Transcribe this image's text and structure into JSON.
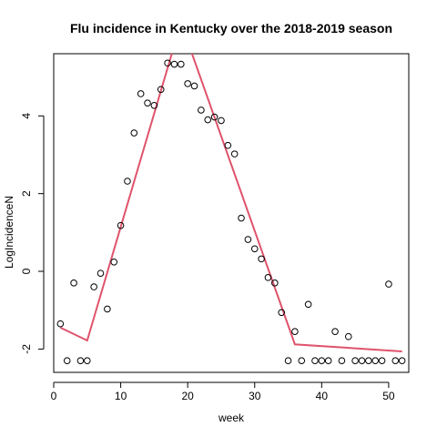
{
  "chart_data": {
    "type": "scatter",
    "title": "Flu incidence in Kentucky over the 2018-2019 season",
    "xlabel": "week",
    "ylabel": "LogIncidenceN",
    "xlim": [
      0,
      53
    ],
    "ylim": [
      -2.6,
      5.6
    ],
    "x_ticks": [
      0,
      10,
      20,
      30,
      40,
      50
    ],
    "y_ticks": [
      -2,
      0,
      2,
      4
    ],
    "box": true,
    "grid": false,
    "legend": "none",
    "point_color": "#000000",
    "line_color": "#DF536B",
    "points": {
      "x": [
        1,
        2,
        3,
        4,
        5,
        6,
        7,
        8,
        9,
        10,
        11,
        12,
        13,
        14,
        15,
        16,
        17,
        18,
        19,
        20,
        21,
        22,
        23,
        24,
        25,
        26,
        27,
        28,
        29,
        30,
        31,
        32,
        33,
        34,
        35,
        36,
        37,
        38,
        39,
        40,
        41,
        42,
        43,
        44,
        45,
        46,
        47,
        48,
        49,
        50,
        51,
        52
      ],
      "y": [
        -1.35,
        -2.3,
        -0.3,
        -2.3,
        -2.3,
        -0.4,
        -0.05,
        -0.97,
        0.24,
        1.18,
        2.32,
        3.56,
        4.57,
        4.33,
        4.27,
        4.68,
        5.36,
        5.33,
        5.33,
        4.83,
        4.77,
        4.15,
        3.9,
        3.97,
        3.88,
        3.24,
        3.02,
        1.37,
        0.82,
        0.58,
        0.32,
        -0.16,
        -0.3,
        -1.06,
        -2.3,
        -1.55,
        -2.3,
        -0.85,
        -2.3,
        -2.3,
        -2.3,
        -1.55,
        -2.3,
        -1.68,
        -2.3,
        -2.3,
        -2.3,
        -2.3,
        -2.3,
        -0.33,
        -2.3,
        -2.3
      ]
    },
    "fitted_line": {
      "x": [
        1,
        5,
        19,
        36,
        52
      ],
      "y": [
        -1.45,
        -1.78,
        6.4,
        -1.88,
        -2.06
      ]
    }
  }
}
